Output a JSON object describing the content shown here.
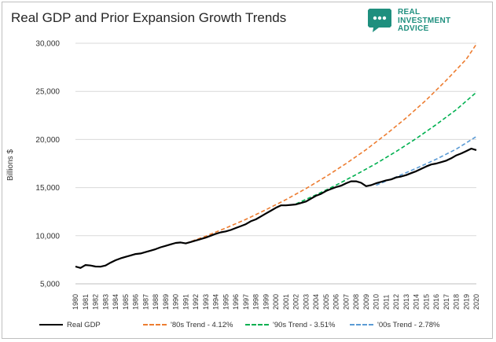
{
  "title": "Real GDP and Prior Expansion Growth Trends",
  "logo": {
    "line1": "REAL",
    "line2": "INVESTMENT",
    "line3": "ADVICE",
    "color": "#1e8f7e",
    "icon": "chat-bubble-icon"
  },
  "chart_data": {
    "type": "line",
    "title": "Real GDP and Prior Expansion Growth Trends",
    "ylabel": "Billions $",
    "xlabel": "",
    "ylim": [
      5000,
      30000
    ],
    "yticks": [
      5000,
      10000,
      15000,
      20000,
      25000,
      30000
    ],
    "ytick_labels": [
      "5,000",
      "10,000",
      "15,000",
      "20,000",
      "25,000",
      "30,000"
    ],
    "xlim": [
      1980,
      2020
    ],
    "xtick_labels": [
      "1980",
      "1981",
      "1982",
      "1983",
      "1984",
      "1985",
      "1986",
      "1987",
      "1988",
      "1989",
      "1990",
      "1991",
      "1992",
      "1993",
      "1994",
      "1995",
      "1996",
      "1997",
      "1998",
      "1999",
      "2000",
      "2001",
      "2002",
      "2003",
      "2004",
      "2005",
      "2006",
      "2007",
      "2008",
      "2009",
      "2010",
      "2011",
      "2012",
      "2013",
      "2014",
      "2015",
      "2016",
      "2017",
      "2018",
      "2019",
      "2020"
    ],
    "grid": "horizontal",
    "legend_position": "bottom",
    "series": [
      {
        "name": "Real GDP",
        "color": "#000000",
        "style": "solid",
        "x": [
          1980.0,
          1980.5,
          1981.0,
          1981.5,
          1982.0,
          1982.5,
          1983.0,
          1983.5,
          1984.0,
          1984.5,
          1985.0,
          1985.5,
          1986.0,
          1986.5,
          1987.0,
          1987.5,
          1988.0,
          1988.5,
          1989.0,
          1989.5,
          1990.0,
          1990.5,
          1991.0,
          1991.5,
          1992.0,
          1992.5,
          1993.0,
          1993.5,
          1994.0,
          1994.5,
          1995.0,
          1995.5,
          1996.0,
          1996.5,
          1997.0,
          1997.5,
          1998.0,
          1998.5,
          1999.0,
          1999.5,
          2000.0,
          2000.5,
          2001.0,
          2001.5,
          2002.0,
          2002.5,
          2003.0,
          2003.5,
          2004.0,
          2004.5,
          2005.0,
          2005.5,
          2006.0,
          2006.5,
          2007.0,
          2007.5,
          2008.0,
          2008.5,
          2009.0,
          2009.5,
          2010.0,
          2010.5,
          2011.0,
          2011.5,
          2012.0,
          2012.5,
          2013.0,
          2013.5,
          2014.0,
          2014.5,
          2015.0,
          2015.5,
          2016.0,
          2016.5,
          2017.0,
          2017.5,
          2018.0,
          2018.5,
          2019.0,
          2019.5,
          2020.0
        ],
        "values": [
          6800,
          6650,
          6950,
          6900,
          6800,
          6780,
          6900,
          7200,
          7450,
          7650,
          7800,
          7950,
          8100,
          8150,
          8300,
          8450,
          8600,
          8800,
          8950,
          9100,
          9250,
          9300,
          9200,
          9350,
          9500,
          9650,
          9800,
          10000,
          10200,
          10350,
          10450,
          10600,
          10800,
          11000,
          11200,
          11500,
          11700,
          12000,
          12300,
          12600,
          12900,
          13150,
          13150,
          13200,
          13250,
          13400,
          13550,
          13850,
          14150,
          14350,
          14650,
          14850,
          15050,
          15200,
          15450,
          15650,
          15650,
          15500,
          15150,
          15250,
          15450,
          15600,
          15750,
          15850,
          16050,
          16150,
          16300,
          16500,
          16700,
          16950,
          17200,
          17400,
          17500,
          17650,
          17800,
          18050,
          18350,
          18550,
          18800,
          19050,
          18900
        ]
      },
      {
        "name": "'80s Trend - 4.12%",
        "color": "#ed7d31",
        "style": "dashed",
        "x": [
          1991.0,
          1993.0,
          1995.0,
          1997.0,
          1999.0,
          2001.0,
          2003.0,
          2005.0,
          2007.0,
          2009.0,
          2011.0,
          2013.0,
          2015.0,
          2017.0,
          2019.0,
          2020.0
        ],
        "values": [
          9200,
          9950,
          10800,
          11700,
          12700,
          13750,
          14900,
          16150,
          17500,
          18950,
          20550,
          22250,
          24100,
          26150,
          28350,
          29900
        ]
      },
      {
        "name": "'90s Trend - 3.51%",
        "color": "#00b050",
        "style": "dashed",
        "x": [
          2002.0,
          2004.0,
          2006.0,
          2008.0,
          2010.0,
          2012.0,
          2014.0,
          2016.0,
          2018.0,
          2020.0
        ],
        "values": [
          13300,
          14250,
          15250,
          16350,
          17500,
          18750,
          20100,
          21550,
          23100,
          24900
        ]
      },
      {
        "name": "'00s Trend - 2.78%",
        "color": "#5b9bd5",
        "style": "dashed",
        "x": [
          2010.0,
          2012.0,
          2014.0,
          2016.0,
          2018.0,
          2020.0
        ],
        "values": [
          15250,
          16100,
          17000,
          17950,
          19000,
          20300
        ]
      }
    ]
  }
}
